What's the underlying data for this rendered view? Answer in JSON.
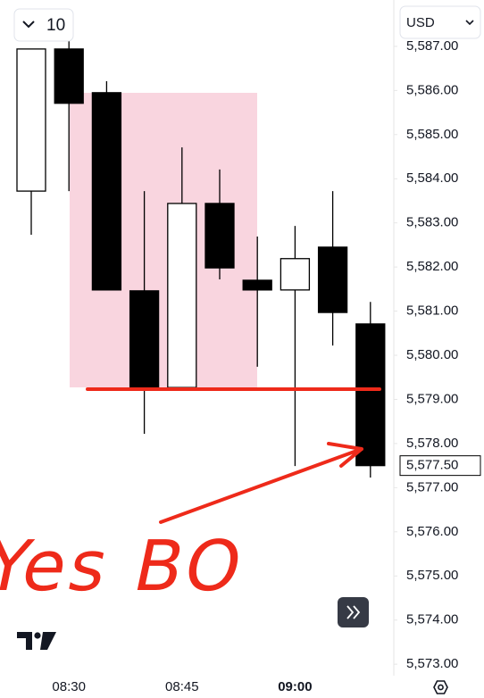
{
  "ui": {
    "interval": "10",
    "currency": "USD"
  },
  "chart_data": {
    "type": "candlestick",
    "categories": [
      null,
      "08:30",
      null,
      null,
      "08:45",
      null,
      null,
      "09:00",
      null,
      null
    ],
    "open": [
      5583.72,
      5586.94,
      5585.95,
      5581.46,
      5579.27,
      5583.44,
      5581.7,
      5581.48,
      5582.45,
      5580.71
    ],
    "high": [
      5586.94,
      5587.34,
      5586.21,
      5583.72,
      5584.71,
      5584.21,
      5582.69,
      5582.93,
      5583.72,
      5581.21
    ],
    "low": [
      5582.73,
      5583.72,
      5581.48,
      5578.22,
      5579.27,
      5581.72,
      5579.74,
      5577.49,
      5580.22,
      5577.23
    ],
    "close": [
      5586.94,
      5585.71,
      5581.48,
      5579.27,
      5583.44,
      5581.98,
      5581.48,
      5582.19,
      5580.97,
      5577.5
    ],
    "up_color": "#ffffff",
    "down_color": "#000000",
    "ylim": [
      5572.74,
      5588.05
    ],
    "yticks": [
      {
        "value": 5573,
        "label": "5,573.00"
      },
      {
        "value": 5574,
        "label": "5,574.00"
      },
      {
        "value": 5575,
        "label": "5,575.00"
      },
      {
        "value": 5576,
        "label": "5,576.00"
      },
      {
        "value": 5577,
        "label": "5,577.00"
      },
      {
        "value": 5578,
        "label": "5,578.00"
      },
      {
        "value": 5579,
        "label": "5,579.00"
      },
      {
        "value": 5580,
        "label": "5,580.00"
      },
      {
        "value": 5581,
        "label": "5,581.00"
      },
      {
        "value": 5582,
        "label": "5,582.00"
      },
      {
        "value": 5583,
        "label": "5,583.00"
      },
      {
        "value": 5584,
        "label": "5,584.00"
      },
      {
        "value": 5585,
        "label": "5,585.00"
      },
      {
        "value": 5586,
        "label": "5,586.00"
      },
      {
        "value": 5587,
        "label": "5,587.00"
      }
    ],
    "last_price": {
      "value": 5577.5,
      "label": "5,577.50"
    },
    "annotation": "Yes BO"
  }
}
